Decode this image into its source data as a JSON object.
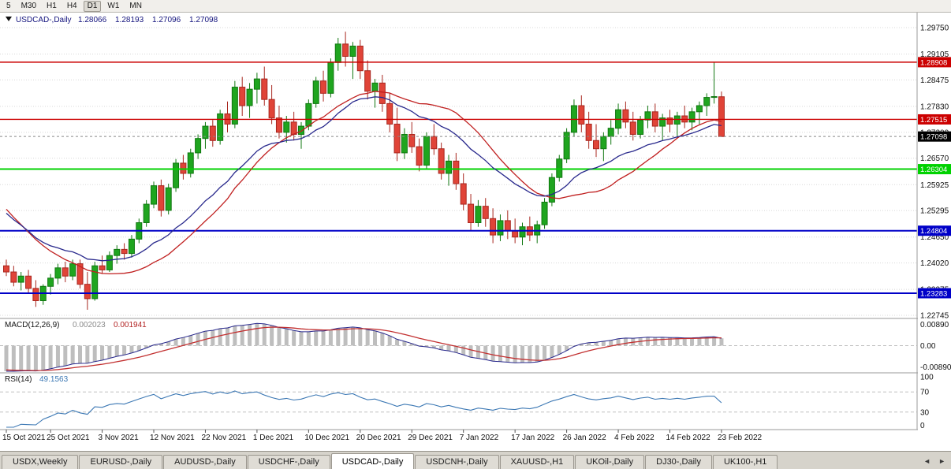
{
  "toolbar": {
    "timeframes": [
      "5",
      "M30",
      "H1",
      "H4",
      "D1",
      "W1",
      "MN"
    ],
    "active_timeframe": "D1"
  },
  "chart_header": {
    "dropdown_icon": "down-triangle-icon",
    "title": "USDCAD-,Daily",
    "open": "1.28066",
    "high": "1.28193",
    "low": "1.27096",
    "close": "1.27098"
  },
  "price_axis": {
    "top_value": 1.2975,
    "bottom_value": 1.22745,
    "labels": [
      "1.29750",
      "1.29105",
      "1.28475",
      "1.27830",
      "1.27200",
      "1.26570",
      "1.25925",
      "1.25295",
      "1.24650",
      "1.24020",
      "1.23375",
      "1.22745"
    ]
  },
  "levels": [
    {
      "value": 1.28908,
      "label": "1.28908",
      "color": "#CC0000",
      "line_width": 1.4
    },
    {
      "value": 1.27515,
      "label": "1.27515",
      "color": "#CC0000",
      "line_width": 1.4
    },
    {
      "value": 1.26304,
      "label": "1.26304",
      "color": "#00D200",
      "line_width": 2
    },
    {
      "value": 1.24804,
      "label": "1.24804",
      "color": "#0000C8",
      "line_width": 2
    },
    {
      "value": 1.23283,
      "label": "1.23283",
      "color": "#0000C8",
      "line_width": 2
    }
  ],
  "current_price": {
    "value": 1.27098,
    "label": "1.27098",
    "tag_color": "#000000"
  },
  "chart_data": {
    "type": "candlestick",
    "title": "USDCAD-,Daily",
    "ylim": [
      1.22745,
      1.2975
    ],
    "x_labels": [
      {
        "i": 0,
        "label": "15 Oct 2021"
      },
      {
        "i": 6,
        "label": "25 Oct 2021"
      },
      {
        "i": 13,
        "label": "3 Nov 2021"
      },
      {
        "i": 20,
        "label": "12 Nov 2021"
      },
      {
        "i": 27,
        "label": "22 Nov 2021"
      },
      {
        "i": 34,
        "label": "1 Dec 2021"
      },
      {
        "i": 41,
        "label": "10 Dec 2021"
      },
      {
        "i": 48,
        "label": "20 Dec 2021"
      },
      {
        "i": 55,
        "label": "29 Dec 2021"
      },
      {
        "i": 62,
        "label": "7 Jan 2022"
      },
      {
        "i": 69,
        "label": "17 Jan 2022"
      },
      {
        "i": 76,
        "label": "26 Jan 2022"
      },
      {
        "i": 83,
        "label": "4 Feb 2022"
      },
      {
        "i": 90,
        "label": "14 Feb 2022"
      },
      {
        "i": 97,
        "label": "23 Feb 2022"
      }
    ],
    "ohlc": [
      [
        1.2395,
        1.241,
        1.237,
        1.238
      ],
      [
        1.238,
        1.2395,
        1.2345,
        1.2355
      ],
      [
        1.2355,
        1.238,
        1.2335,
        1.237
      ],
      [
        1.237,
        1.2385,
        1.233,
        1.234
      ],
      [
        1.234,
        1.236,
        1.2295,
        1.231
      ],
      [
        1.231,
        1.235,
        1.23,
        1.2345
      ],
      [
        1.2345,
        1.2375,
        1.2325,
        1.2365
      ],
      [
        1.2365,
        1.24,
        1.235,
        1.239
      ],
      [
        1.239,
        1.2405,
        1.2355,
        1.237
      ],
      [
        1.237,
        1.241,
        1.236,
        1.24
      ],
      [
        1.24,
        1.241,
        1.234,
        1.235
      ],
      [
        1.235,
        1.238,
        1.2288,
        1.2315
      ],
      [
        1.2315,
        1.2405,
        1.231,
        1.2395
      ],
      [
        1.2395,
        1.242,
        1.2375,
        1.2385
      ],
      [
        1.2385,
        1.243,
        1.238,
        1.242
      ],
      [
        1.242,
        1.2445,
        1.24,
        1.2435
      ],
      [
        1.2435,
        1.245,
        1.241,
        1.2425
      ],
      [
        1.2425,
        1.247,
        1.2415,
        1.246
      ],
      [
        1.246,
        1.251,
        1.245,
        1.25
      ],
      [
        1.25,
        1.2555,
        1.249,
        1.2545
      ],
      [
        1.2545,
        1.26,
        1.2535,
        1.259
      ],
      [
        1.259,
        1.2605,
        1.2515,
        1.253
      ],
      [
        1.253,
        1.2595,
        1.252,
        1.2585
      ],
      [
        1.2585,
        1.2655,
        1.2575,
        1.2645
      ],
      [
        1.2645,
        1.2665,
        1.2605,
        1.262
      ],
      [
        1.262,
        1.268,
        1.261,
        1.267
      ],
      [
        1.267,
        1.2715,
        1.2655,
        1.2705
      ],
      [
        1.2705,
        1.2745,
        1.268,
        1.2735
      ],
      [
        1.2735,
        1.275,
        1.2685,
        1.27
      ],
      [
        1.27,
        1.2775,
        1.269,
        1.2765
      ],
      [
        1.2765,
        1.2795,
        1.272,
        1.274
      ],
      [
        1.274,
        1.2845,
        1.273,
        1.283
      ],
      [
        1.283,
        1.2855,
        1.276,
        1.2785
      ],
      [
        1.2785,
        1.284,
        1.2755,
        1.2825
      ],
      [
        1.2825,
        1.2865,
        1.279,
        1.285
      ],
      [
        1.285,
        1.288,
        1.2785,
        1.28
      ],
      [
        1.28,
        1.2835,
        1.274,
        1.2755
      ],
      [
        1.2755,
        1.2785,
        1.2705,
        1.272
      ],
      [
        1.272,
        1.276,
        1.2695,
        1.2745
      ],
      [
        1.2745,
        1.277,
        1.27,
        1.2715
      ],
      [
        1.2715,
        1.2745,
        1.268,
        1.2735
      ],
      [
        1.2735,
        1.28,
        1.2725,
        1.279
      ],
      [
        1.279,
        1.2855,
        1.278,
        1.2845
      ],
      [
        1.2845,
        1.287,
        1.2795,
        1.2815
      ],
      [
        1.2815,
        1.29,
        1.2805,
        1.289
      ],
      [
        1.289,
        1.295,
        1.287,
        1.2935
      ],
      [
        1.2935,
        1.2965,
        1.288,
        1.2905
      ],
      [
        1.2905,
        1.294,
        1.285,
        1.293
      ],
      [
        1.293,
        1.2945,
        1.285,
        1.287
      ],
      [
        1.287,
        1.2895,
        1.28,
        1.282
      ],
      [
        1.282,
        1.285,
        1.278,
        1.284
      ],
      [
        1.284,
        1.286,
        1.277,
        1.279
      ],
      [
        1.279,
        1.2815,
        1.272,
        1.274
      ],
      [
        1.274,
        1.278,
        1.265,
        1.267
      ],
      [
        1.267,
        1.273,
        1.2655,
        1.2715
      ],
      [
        1.2715,
        1.2745,
        1.267,
        1.2685
      ],
      [
        1.2685,
        1.2705,
        1.2625,
        1.264
      ],
      [
        1.264,
        1.272,
        1.263,
        1.271
      ],
      [
        1.271,
        1.274,
        1.2665,
        1.268
      ],
      [
        1.268,
        1.2695,
        1.2605,
        1.262
      ],
      [
        1.262,
        1.2665,
        1.259,
        1.265
      ],
      [
        1.265,
        1.267,
        1.258,
        1.2595
      ],
      [
        1.2595,
        1.262,
        1.253,
        1.2545
      ],
      [
        1.2545,
        1.257,
        1.248,
        1.25
      ],
      [
        1.25,
        1.2555,
        1.249,
        1.254
      ],
      [
        1.254,
        1.256,
        1.249,
        1.251
      ],
      [
        1.251,
        1.2535,
        1.245,
        1.247
      ],
      [
        1.247,
        1.252,
        1.2455,
        1.2505
      ],
      [
        1.2505,
        1.253,
        1.246,
        1.248
      ],
      [
        1.248,
        1.251,
        1.245,
        1.2465
      ],
      [
        1.2465,
        1.25,
        1.2445,
        1.249
      ],
      [
        1.249,
        1.2515,
        1.2455,
        1.247
      ],
      [
        1.247,
        1.2505,
        1.245,
        1.2495
      ],
      [
        1.2495,
        1.256,
        1.2485,
        1.255
      ],
      [
        1.255,
        1.262,
        1.254,
        1.261
      ],
      [
        1.261,
        1.2665,
        1.26,
        1.2655
      ],
      [
        1.2655,
        1.273,
        1.2645,
        1.272
      ],
      [
        1.272,
        1.28,
        1.271,
        1.2785
      ],
      [
        1.2785,
        1.281,
        1.272,
        1.274
      ],
      [
        1.274,
        1.277,
        1.268,
        1.27
      ],
      [
        1.27,
        1.274,
        1.266,
        1.268
      ],
      [
        1.268,
        1.272,
        1.265,
        1.271
      ],
      [
        1.271,
        1.275,
        1.269,
        1.273
      ],
      [
        1.273,
        1.279,
        1.2715,
        1.2775
      ],
      [
        1.2775,
        1.2795,
        1.273,
        1.2745
      ],
      [
        1.2745,
        1.277,
        1.27,
        1.2715
      ],
      [
        1.2715,
        1.276,
        1.2705,
        1.275
      ],
      [
        1.275,
        1.2785,
        1.273,
        1.277
      ],
      [
        1.277,
        1.279,
        1.272,
        1.2735
      ],
      [
        1.2735,
        1.2765,
        1.27,
        1.2755
      ],
      [
        1.2755,
        1.2775,
        1.272,
        1.274
      ],
      [
        1.274,
        1.277,
        1.2705,
        1.276
      ],
      [
        1.276,
        1.2785,
        1.273,
        1.2745
      ],
      [
        1.2745,
        1.278,
        1.2725,
        1.277
      ],
      [
        1.277,
        1.2795,
        1.274,
        1.2785
      ],
      [
        1.2785,
        1.2815,
        1.276,
        1.2805
      ],
      [
        1.2805,
        1.289,
        1.279,
        1.2807
      ],
      [
        1.28066,
        1.28193,
        1.27096,
        1.27098
      ]
    ],
    "bull_color": "#1FA51F",
    "bear_color": "#E04438",
    "bull_border": "#117711",
    "bear_border": "#A8271F",
    "moving_averages": [
      {
        "name": "sma-20",
        "color": "#C02020",
        "type": "sma",
        "period": 20
      },
      {
        "name": "ema-20",
        "color": "#28288C",
        "type": "ema",
        "period": 20
      }
    ],
    "ma_seed_closes": [
      1.288,
      1.286,
      1.284,
      1.282,
      1.28,
      1.2775,
      1.275,
      1.2725,
      1.27,
      1.2675,
      1.265,
      1.2625,
      1.26,
      1.2575,
      1.255,
      1.2525,
      1.25,
      1.248,
      1.246,
      1.244,
      1.2425,
      1.241,
      1.24,
      1.2395,
      1.239
    ]
  },
  "macd_panel": {
    "title": "MACD(12,26,9)",
    "value_main": "0.002023",
    "value_signal": "0.001941",
    "axis_labels": [
      "0.00890",
      "0.00",
      "-0.00890"
    ],
    "axis_max": 0.0089,
    "fast_ema": 12,
    "slow_ema": 26,
    "signal_period": 9,
    "histogram_color": "#BEBEBE",
    "main_line_color": "#28288C",
    "signal_line_color": "#C23030"
  },
  "rsi_panel": {
    "title": "RSI(14)",
    "value": "49.1563",
    "period": 14,
    "axis_labels": [
      "100",
      "70",
      "30",
      "0"
    ],
    "level_lines": [
      70,
      30
    ],
    "line_color": "#3C78B4"
  },
  "tabs": {
    "items": [
      "USDX,Weekly",
      "EURUSD-,Daily",
      "AUDUSD-,Daily",
      "USDCHF-,Daily",
      "USDCAD-,Daily",
      "USDCNH-,Daily",
      "XAUUSD-,H1",
      "UKOil-,Daily",
      "DJ30-,Daily",
      "UK100-,H1"
    ],
    "active": "USDCAD-,Daily",
    "scroll_left_icon": "◄",
    "scroll_right_icon": "►"
  }
}
